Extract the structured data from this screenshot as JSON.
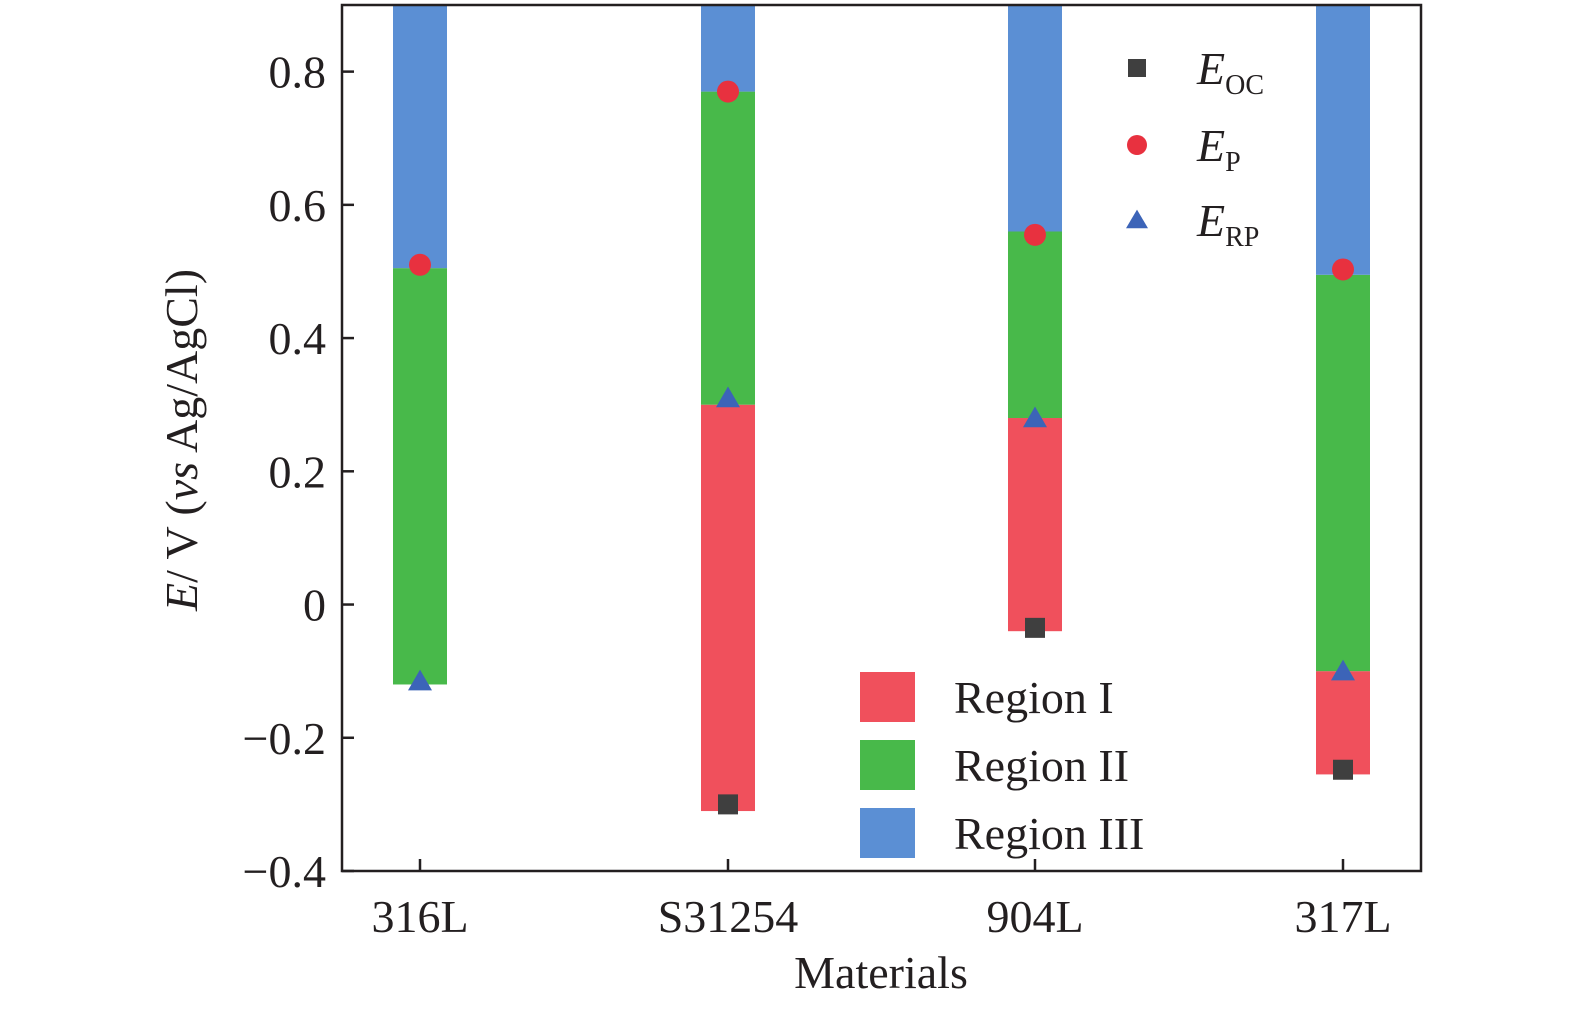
{
  "chart_data": {
    "type": "bar",
    "subtype": "stacked-floating",
    "categories": [
      "316L",
      "S31254",
      "904L",
      "317L"
    ],
    "xlabel": "Materials",
    "ylabel": {
      "prefix": "E",
      "mid": "/ V (",
      "italic": "vs",
      "suffix": " Ag/AgCl)"
    },
    "ylim": [
      -0.4,
      0.9
    ],
    "yticks": [
      -0.4,
      -0.2,
      0,
      0.2,
      0.4,
      0.6,
      0.8
    ],
    "ytick_labels": [
      "−0.4",
      "−0.2",
      "0",
      "0.2",
      "0.4",
      "0.6",
      "0.8"
    ],
    "regions": [
      {
        "name": "Region I",
        "color": "#f0505c",
        "values": [
          null,
          [
            -0.31,
            0.3
          ],
          [
            -0.04,
            0.28
          ],
          [
            -0.255,
            -0.1
          ]
        ]
      },
      {
        "name": "Region II",
        "color": "#48b94a",
        "values": [
          [
            -0.12,
            0.505
          ],
          [
            0.3,
            0.77
          ],
          [
            0.28,
            0.56
          ],
          [
            -0.1,
            0.495
          ]
        ]
      },
      {
        "name": "Region III",
        "color": "#5b8fd4",
        "values": [
          [
            0.505,
            0.9
          ],
          [
            0.77,
            0.9
          ],
          [
            0.56,
            0.9
          ],
          [
            0.495,
            0.9
          ]
        ]
      }
    ],
    "markers": [
      {
        "name_main": "E",
        "name_sub": "OC",
        "shape": "square",
        "color": "#3f3f3f",
        "values": [
          null,
          -0.3,
          -0.035,
          -0.248
        ]
      },
      {
        "name_main": "E",
        "name_sub": "P",
        "shape": "circle",
        "color": "#e8313f",
        "values": [
          0.51,
          0.77,
          0.555,
          0.503
        ]
      },
      {
        "name_main": "E",
        "name_sub": "RP",
        "shape": "triangle",
        "color": "#3c64b8",
        "values": [
          -0.115,
          0.31,
          0.28,
          -0.1
        ]
      }
    ],
    "grid": false,
    "legend_markers_position": "top-right",
    "legend_regions_position": "bottom-right"
  }
}
